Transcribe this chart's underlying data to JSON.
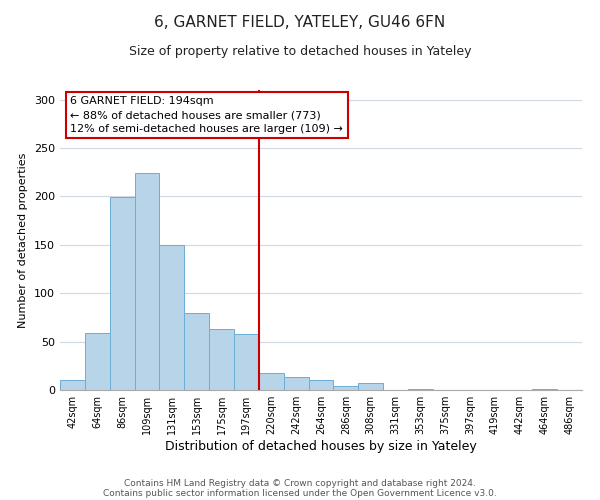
{
  "title": "6, GARNET FIELD, YATELEY, GU46 6FN",
  "subtitle": "Size of property relative to detached houses in Yateley",
  "xlabel": "Distribution of detached houses by size in Yateley",
  "ylabel": "Number of detached properties",
  "bar_labels": [
    "42sqm",
    "64sqm",
    "86sqm",
    "109sqm",
    "131sqm",
    "153sqm",
    "175sqm",
    "197sqm",
    "220sqm",
    "242sqm",
    "264sqm",
    "286sqm",
    "308sqm",
    "331sqm",
    "353sqm",
    "375sqm",
    "397sqm",
    "419sqm",
    "442sqm",
    "464sqm",
    "486sqm"
  ],
  "bar_heights": [
    10,
    59,
    199,
    224,
    150,
    80,
    63,
    58,
    18,
    13,
    10,
    4,
    7,
    0,
    1,
    0,
    0,
    0,
    0,
    1,
    0
  ],
  "bar_color": "#b8d4e8",
  "bar_edge_color": "#6aaed6",
  "vline_x_index": 7,
  "vline_color": "#cc0000",
  "annotation_title": "6 GARNET FIELD: 194sqm",
  "annotation_line1": "← 88% of detached houses are smaller (773)",
  "annotation_line2": "12% of semi-detached houses are larger (109) →",
  "annotation_box_color": "#ffffff",
  "annotation_box_edge": "#cc0000",
  "ylim": [
    0,
    310
  ],
  "footer1": "Contains HM Land Registry data © Crown copyright and database right 2024.",
  "footer2": "Contains public sector information licensed under the Open Government Licence v3.0.",
  "background_color": "#ffffff",
  "grid_color": "#d0d8e4",
  "title_fontsize": 11,
  "subtitle_fontsize": 9,
  "ylabel_fontsize": 8,
  "xlabel_fontsize": 9,
  "tick_fontsize": 7,
  "ytick_fontsize": 8,
  "annotation_fontsize": 8,
  "footer_fontsize": 6.5
}
